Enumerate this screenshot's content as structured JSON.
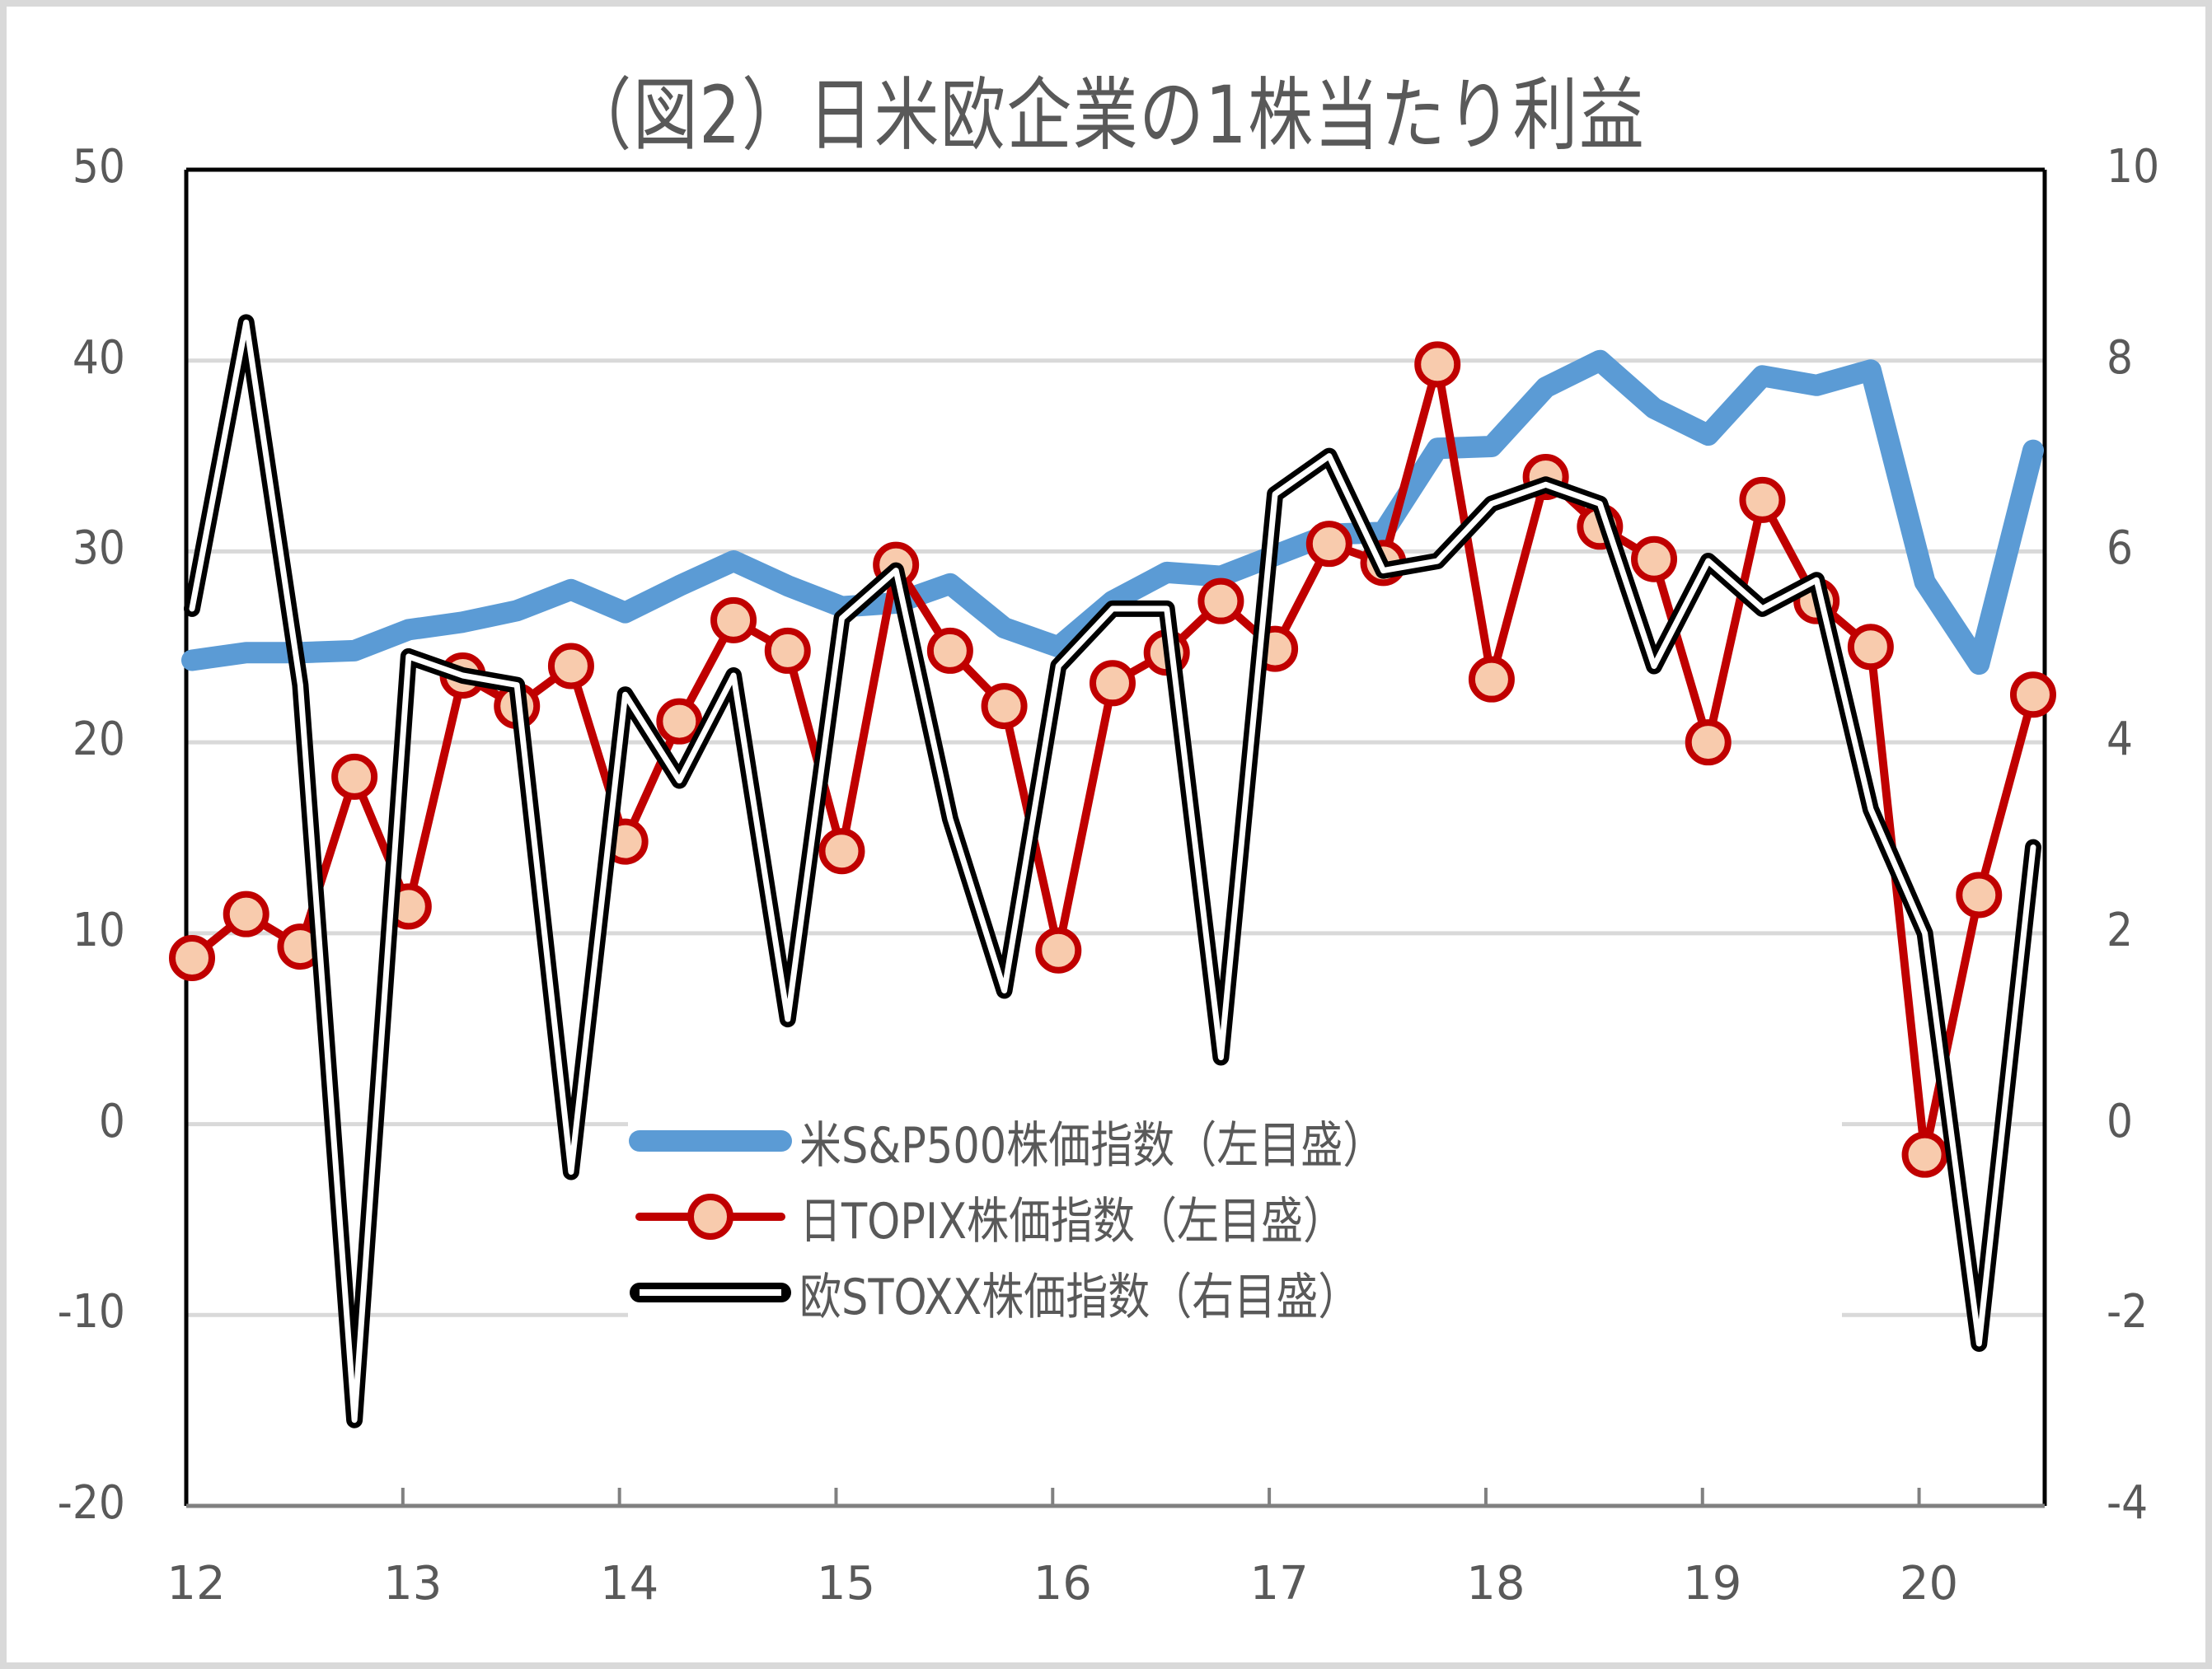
{
  "chart_data": {
    "type": "line",
    "title": "（図2）日米欧企業の1株当たり利益",
    "xlabel": "",
    "ylabel_left": "",
    "ylabel_right": "",
    "x_tick_labels": [
      "12",
      "13",
      "14",
      "15",
      "16",
      "17",
      "18",
      "19",
      "20"
    ],
    "x_quarters": [
      "12Q1",
      "12Q2",
      "12Q3",
      "12Q4",
      "13Q1",
      "13Q2",
      "13Q3",
      "13Q4",
      "14Q1",
      "14Q2",
      "14Q3",
      "14Q4",
      "15Q1",
      "15Q2",
      "15Q3",
      "15Q4",
      "16Q1",
      "16Q2",
      "16Q3",
      "16Q4",
      "17Q1",
      "17Q2",
      "17Q3",
      "17Q4",
      "18Q1",
      "18Q2",
      "18Q3",
      "18Q4",
      "19Q1",
      "19Q2",
      "19Q3",
      "19Q4",
      "20Q1",
      "20Q2",
      "20Q3"
    ],
    "ylim_left": [
      -20,
      50
    ],
    "yticks_left": [
      -20,
      -10,
      0,
      10,
      20,
      30,
      40,
      50
    ],
    "ylim_right": [
      -4,
      10
    ],
    "yticks_right": [
      -4,
      -2,
      0,
      2,
      4,
      6,
      8,
      10
    ],
    "grid": "horizontal",
    "legend_position": "inside-lower-center",
    "series": [
      {
        "name": "米S&P500株価指数（左目盛）",
        "axis": "left",
        "color": "#5b9bd5",
        "style": "thick-line",
        "values": [
          24.3,
          24.7,
          24.7,
          24.8,
          25.9,
          26.3,
          26.9,
          28.0,
          26.8,
          28.2,
          29.5,
          28.2,
          27.1,
          27.3,
          28.3,
          26.0,
          25.0,
          27.4,
          28.9,
          28.7,
          29.8,
          30.9,
          31.0,
          35.4,
          35.5,
          38.6,
          40.0,
          37.5,
          36.1,
          39.2,
          38.7,
          39.5,
          28.4,
          24.1,
          35.3
        ]
      },
      {
        "name": "日TOPIX株価指数（左目盛）",
        "axis": "left",
        "color": "#c00000",
        "marker_fill": "#f8cbad",
        "style": "line-circle-markers",
        "values": [
          8.7,
          11.0,
          9.3,
          18.2,
          11.4,
          23.5,
          21.9,
          24.0,
          14.8,
          21.1,
          26.4,
          24.8,
          14.3,
          29.3,
          24.8,
          21.9,
          9.1,
          23.1,
          24.7,
          27.4,
          24.9,
          30.4,
          29.4,
          39.8,
          23.3,
          33.9,
          31.3,
          29.6,
          20.0,
          32.7,
          27.4,
          25.0,
          -1.6,
          12.0,
          22.5
        ]
      },
      {
        "name": "欧STOXX株価指数（右目盛）",
        "axis": "right",
        "color": "#000000",
        "style": "double-line",
        "values": [
          5.4,
          8.4,
          4.6,
          -3.1,
          4.9,
          4.7,
          4.6,
          -0.5,
          4.5,
          3.6,
          4.7,
          1.1,
          5.3,
          5.8,
          3.2,
          1.4,
          4.8,
          5.4,
          5.4,
          0.7,
          6.6,
          7.0,
          5.8,
          5.9,
          6.5,
          6.7,
          6.5,
          4.8,
          5.9,
          5.4,
          5.7,
          3.3,
          2.0,
          -2.3,
          2.9
        ]
      }
    ]
  },
  "legend": {
    "items": [
      {
        "label": "米S&P500株価指数（左目盛）",
        "color": "#5b9bd5"
      },
      {
        "label": "日TOPIX株価指数（左目盛）",
        "color": "#c00000"
      },
      {
        "label": "欧STOXX株価指数（右目盛）",
        "color": "#000000"
      }
    ]
  },
  "colors": {
    "text": "#595959",
    "grid": "#d9d9d9",
    "border": "#d9d9d9",
    "axis": "#000000",
    "x_axis": "#808080"
  }
}
